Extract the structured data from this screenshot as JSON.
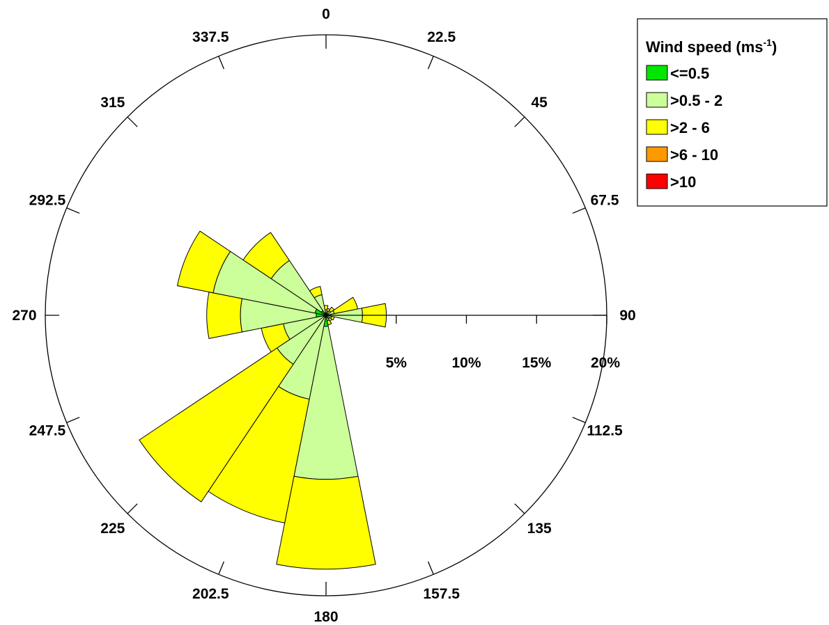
{
  "chart_data": {
    "type": "windrose",
    "direction_labels": [
      "0",
      "22.5",
      "45",
      "67.5",
      "90",
      "112.5",
      "135",
      "157.5",
      "180",
      "202.5",
      "225",
      "247.5",
      "270",
      "292.5",
      "315",
      "337.5"
    ],
    "radial_tick_labels": [
      "5%",
      "10%",
      "15%",
      "20%"
    ],
    "radial_ticks": [
      5,
      10,
      15,
      20
    ],
    "rmax": 20,
    "legend": {
      "title": "Wind speed (ms",
      "title_sup": "-1",
      "title_end": ")",
      "items": [
        "<=0.5",
        ">0.5 - 2",
        ">2 - 6",
        ">6 - 10",
        ">10"
      ]
    },
    "bin_colors": [
      "#00e600",
      "#ccff99",
      "#ffff00",
      "#ff9900",
      "#ff0000"
    ],
    "directions": [
      0,
      22.5,
      45,
      67.5,
      90,
      112.5,
      135,
      157.5,
      180,
      202.5,
      225,
      247.5,
      270,
      292.5,
      315,
      337.5
    ],
    "series": [
      {
        "name": "<=0.5",
        "values": [
          0.1,
          0.1,
          0.1,
          0.1,
          0.1,
          0.1,
          0.1,
          0.1,
          0.8,
          0.1,
          0.1,
          0.2,
          0.7,
          0.8,
          0.4,
          0.2
        ]
      },
      {
        "name": ">0.5 - 2",
        "values": [
          0.3,
          0.2,
          0.3,
          0.5,
          2.5,
          0.3,
          0.2,
          0.3,
          10.9,
          6.0,
          4.1,
          2.9,
          5.4,
          7.4,
          4.3,
          1.3
        ]
      },
      {
        "name": ">2 - 6",
        "values": [
          0.3,
          0.2,
          0.3,
          1.7,
          1.7,
          0.2,
          0.2,
          0.3,
          6.4,
          9.0,
          11.8,
          1.6,
          2.4,
          2.6,
          2.4,
          0.6
        ]
      },
      {
        "name": ">6 - 10",
        "values": [
          0,
          0,
          0,
          0,
          0,
          0,
          0,
          0,
          0,
          0,
          0,
          0,
          0,
          0,
          0,
          0
        ]
      },
      {
        "name": ">10",
        "values": [
          0,
          0,
          0,
          0,
          0,
          0,
          0,
          0,
          0,
          0,
          0,
          0,
          0,
          0,
          0,
          0
        ]
      }
    ]
  }
}
